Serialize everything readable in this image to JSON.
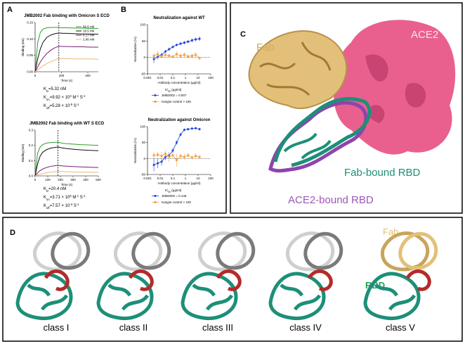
{
  "panels": {
    "labels": [
      "A",
      "B",
      "C",
      "D"
    ]
  },
  "structure_c": {
    "labels": [
      "Fab",
      "ACE2",
      "Fab-bound RBD",
      "ACE2-bound RBD"
    ]
  },
  "structure_d": {
    "classes": [
      "class I",
      "class II",
      "class III",
      "class IV",
      "class V"
    ],
    "labels": [
      "Fab",
      "RBD"
    ]
  },
  "chart_data": [
    {
      "type": "line",
      "title": "JMB2002 Fab binding with Omicron S ECD",
      "x_label": "Time (s)",
      "y_label": "Binding (nm)",
      "xlim": [
        0,
        480
      ],
      "xticks": [
        0,
        200,
        400
      ],
      "ylim": [
        0,
        0.15
      ],
      "yticks": [
        {
          "value": 0,
          "label": "0.00"
        },
        {
          "value": 0.05,
          "label": "0.05"
        },
        {
          "value": 0.1,
          "label": "0.10"
        },
        {
          "value": 0.15,
          "label": "0.15"
        }
      ],
      "vline": 180,
      "legend": "upper right",
      "x": [
        0,
        20,
        40,
        60,
        90,
        120,
        150,
        180,
        210,
        240,
        300,
        360,
        420,
        480
      ],
      "series": [
        {
          "name": "66.6 nM",
          "color": "#2ca02c",
          "values": [
            0,
            0.09,
            0.12,
            0.13,
            0.134,
            0.135,
            0.135,
            0.135,
            0.134,
            0.134,
            0.133,
            0.133,
            0.132,
            0.132
          ]
        },
        {
          "name": "18.5 nM",
          "color": "#111111",
          "values": [
            0,
            0.04,
            0.07,
            0.09,
            0.105,
            0.112,
            0.116,
            0.118,
            0.117,
            0.117,
            0.116,
            0.115,
            0.115,
            0.114
          ]
        },
        {
          "name": "6.17 nM",
          "color": "#7b1f6a",
          "values": [
            0,
            0.015,
            0.03,
            0.042,
            0.056,
            0.066,
            0.073,
            0.078,
            0.077,
            0.077,
            0.076,
            0.076,
            0.075,
            0.075
          ]
        },
        {
          "name": "2.06 nM",
          "color": "#e8b978",
          "values": [
            0,
            0.006,
            0.012,
            0.018,
            0.025,
            0.031,
            0.036,
            0.04,
            0.04,
            0.04,
            0.039,
            0.039,
            0.039,
            0.038
          ]
        }
      ],
      "annotations": [
        [
          {
            "t": "K"
          },
          {
            "sub": "D"
          },
          {
            "t": "=5.32 nM"
          }
        ],
        [
          {
            "t": "K"
          },
          {
            "sub": "on"
          },
          {
            "t": "=9.92 × 10"
          },
          {
            "sup": "3"
          },
          {
            "t": " M"
          },
          {
            "sup": "-1"
          },
          {
            "t": " S"
          },
          {
            "sup": "-1"
          }
        ],
        [
          {
            "t": "K"
          },
          {
            "sub": "off"
          },
          {
            "t": "=5.28 × 10"
          },
          {
            "sup": "-5"
          },
          {
            "t": " S"
          },
          {
            "sup": "-1"
          }
        ]
      ]
    },
    {
      "type": "line",
      "title": "JMB2002 Fab binding with WT S ECD",
      "x_label": "Time (s)",
      "y_label": "Binding (nm)",
      "xlim": [
        0,
        500
      ],
      "xticks": [
        0,
        100,
        200,
        300,
        400,
        500
      ],
      "ylim": [
        0,
        0.3
      ],
      "yticks": [
        {
          "value": 0,
          "label": "0.0"
        },
        {
          "value": 0.1,
          "label": "0.1"
        },
        {
          "value": 0.2,
          "label": "0.2"
        },
        {
          "value": 0.3,
          "label": "0.3"
        }
      ],
      "vline": 180,
      "x": [
        0,
        20,
        40,
        60,
        90,
        120,
        150,
        180,
        210,
        240,
        300,
        360,
        420,
        500
      ],
      "series": [
        {
          "color": "#2ca02c",
          "values": [
            0,
            0.15,
            0.19,
            0.205,
            0.215,
            0.218,
            0.22,
            0.221,
            0.215,
            0.212,
            0.208,
            0.205,
            0.203,
            0.2
          ]
        },
        {
          "color": "#111111",
          "values": [
            0,
            0.08,
            0.13,
            0.155,
            0.172,
            0.181,
            0.186,
            0.19,
            0.184,
            0.18,
            0.175,
            0.171,
            0.168,
            0.165
          ]
        },
        {
          "color": "#7b1f6a",
          "values": [
            0,
            0.02,
            0.035,
            0.045,
            0.055,
            0.062,
            0.066,
            0.069,
            0.066,
            0.064,
            0.061,
            0.059,
            0.057,
            0.055
          ]
        },
        {
          "color": "#e8b978",
          "values": [
            0,
            0.006,
            0.011,
            0.015,
            0.02,
            0.024,
            0.027,
            0.029,
            0.028,
            0.027,
            0.026,
            0.025,
            0.024,
            0.023
          ]
        }
      ],
      "annotations": [
        [
          {
            "t": "K"
          },
          {
            "sub": "D"
          },
          {
            "t": "=20.4 nM"
          }
        ],
        [
          {
            "t": "K"
          },
          {
            "sub": "on"
          },
          {
            "t": "=3.71 × 10"
          },
          {
            "sup": "5"
          },
          {
            "t": " M"
          },
          {
            "sup": "-1"
          },
          {
            "t": " S"
          },
          {
            "sup": "-1"
          }
        ],
        [
          {
            "t": "K"
          },
          {
            "sub": "off"
          },
          {
            "t": "=7.57 × 10"
          },
          {
            "sup": "-3"
          },
          {
            "t": " S"
          },
          {
            "sup": "-1"
          }
        ]
      ]
    },
    {
      "type": "scatter",
      "title": "Neutralization against WT",
      "x_label": "Antibody concentration (μg/ml)",
      "y_label": "Neutralization (%)",
      "log_x": true,
      "xlim": [
        0.001,
        100
      ],
      "xticks": [
        0.001,
        0.01,
        0.1,
        1,
        10,
        100
      ],
      "ylim": [
        -50,
        100
      ],
      "yticks": [
        -50,
        0,
        50,
        100
      ],
      "hline": 0,
      "legend": "below",
      "legend_title": [
        {
          "t": "IC"
        },
        {
          "sub": "50"
        },
        {
          "t": " (μg/ml)"
        }
      ],
      "x": [
        0.0032,
        0.0064,
        0.013,
        0.026,
        0.051,
        0.1,
        0.2,
        0.41,
        0.82,
        1.6,
        3.3,
        6.5,
        13
      ],
      "series": [
        {
          "name": "JMB2002 = 0.007",
          "color": "#1f3fd6",
          "marker": "circle",
          "values": [
            -5,
            2,
            8,
            18,
            25,
            32,
            38,
            42,
            45,
            48,
            52,
            55,
            57
          ],
          "errors": [
            12,
            8,
            6,
            5,
            5,
            4,
            4,
            5,
            5,
            5,
            6,
            6,
            7
          ]
        },
        {
          "name": "Isotype control > 100",
          "color": "#f4a24a",
          "marker": "square",
          "values": [
            5,
            10,
            3,
            8,
            5,
            2,
            10,
            5,
            8,
            3,
            5,
            8,
            -2
          ],
          "errors": [
            8,
            10,
            6,
            8,
            7,
            6,
            9,
            6,
            8,
            6,
            7,
            8,
            6
          ]
        }
      ]
    },
    {
      "type": "scatter",
      "title": "Neutralization against Omicron",
      "x_label": "Antibody concentration (μg/ml)",
      "y_label": "Neutralization (%)",
      "log_x": true,
      "xlim": [
        0.001,
        100
      ],
      "xticks": [
        0.001,
        0.01,
        0.1,
        1,
        10,
        100
      ],
      "ylim": [
        -50,
        100
      ],
      "yticks": [
        -50,
        0,
        50,
        100
      ],
      "hline": 0,
      "legend": "below",
      "legend_title": [
        {
          "t": "IC"
        },
        {
          "sub": "50"
        },
        {
          "t": " (μg/ml)"
        }
      ],
      "x": [
        0.0032,
        0.0064,
        0.013,
        0.026,
        0.051,
        0.1,
        0.2,
        0.41,
        0.82,
        1.6,
        3.3,
        6.5,
        13
      ],
      "series": [
        {
          "name": "JMB2002 = 0.146",
          "color": "#1f3fd6",
          "marker": "circle",
          "values": [
            -20,
            -15,
            -10,
            5,
            10,
            25,
            50,
            75,
            90,
            92,
            94,
            95,
            92
          ],
          "errors": [
            20,
            15,
            12,
            10,
            10,
            8,
            6,
            5,
            4,
            4,
            3,
            3,
            4
          ]
        },
        {
          "name": "Isotype control > 100",
          "color": "#f4a24a",
          "marker": "square",
          "values": [
            10,
            12,
            8,
            15,
            5,
            10,
            -5,
            8,
            5,
            10,
            3,
            8,
            5
          ],
          "errors": [
            10,
            8,
            12,
            10,
            15,
            8,
            20,
            8,
            10,
            8,
            6,
            8,
            6
          ]
        }
      ]
    }
  ]
}
